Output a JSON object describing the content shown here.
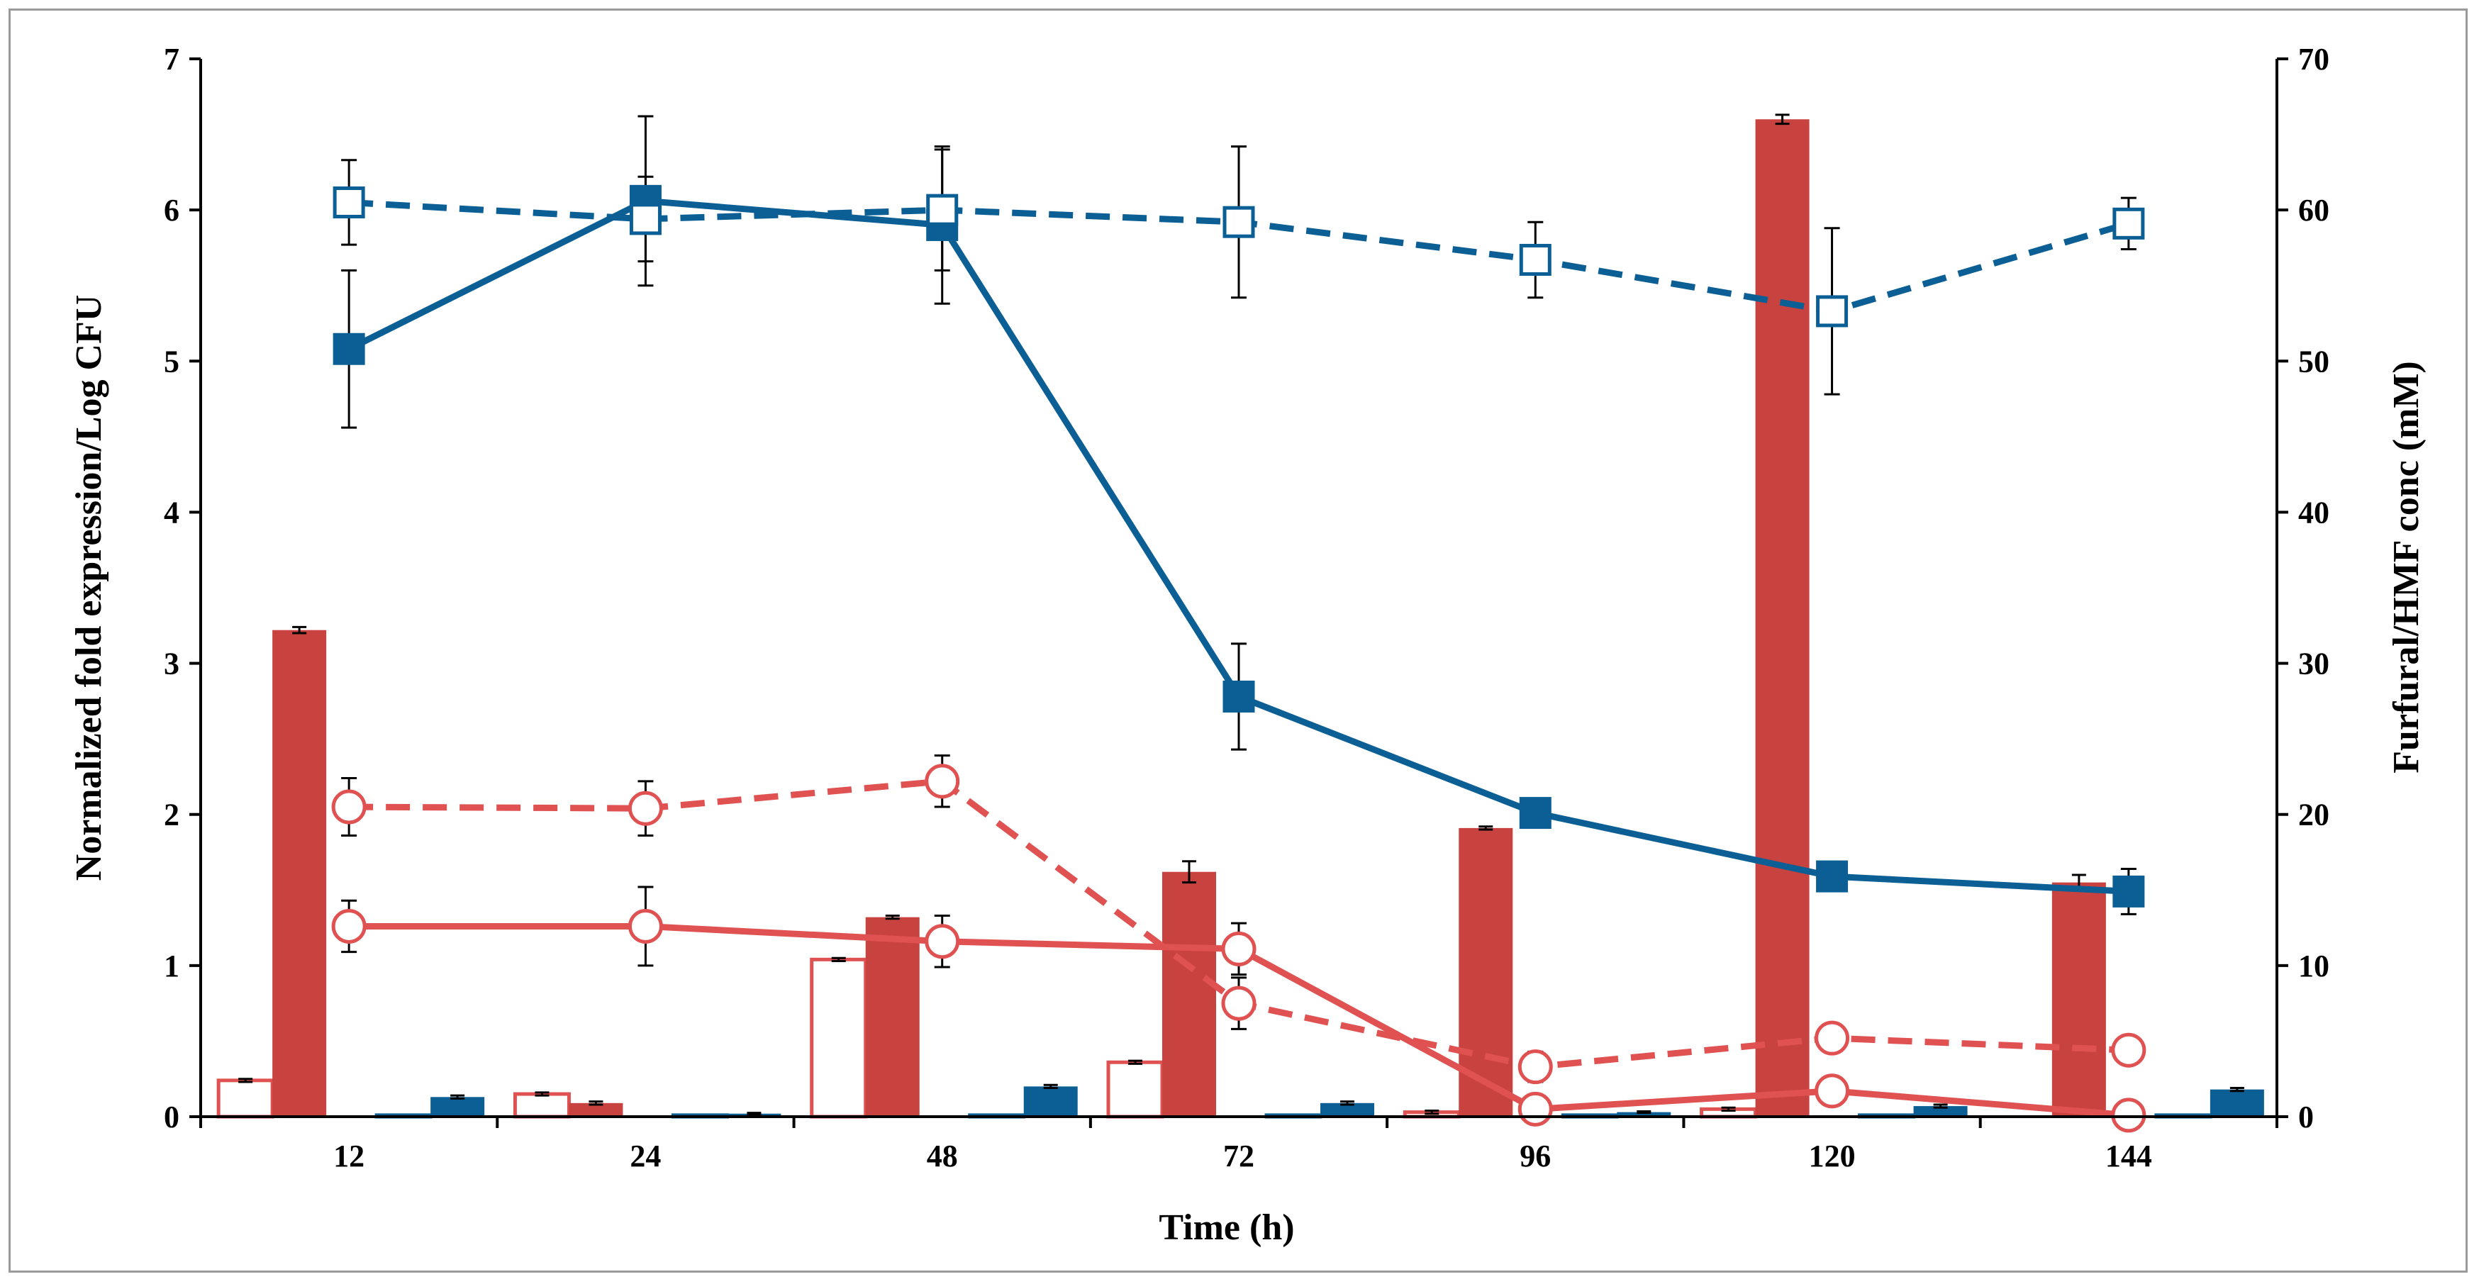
{
  "chart_data": {
    "type": "bar+line",
    "title": "",
    "xlabel": "Time (h)",
    "ylabel_left": "Normalized fold expression/Log CFU",
    "ylabel_right": "Furfural/HMF conc (mM)",
    "categories": [
      "12",
      "24",
      "48",
      "72",
      "96",
      "120",
      "144"
    ],
    "y_left": {
      "min": 0,
      "max": 7,
      "ticks": [
        "0",
        "1",
        "2",
        "3",
        "4",
        "5",
        "6",
        "7"
      ]
    },
    "y_right": {
      "min": 0,
      "max": 70,
      "ticks": [
        "0",
        "10",
        "20",
        "30",
        "40",
        "50",
        "60",
        "70"
      ]
    },
    "colors": {
      "red": "#c8423f",
      "blue": "#0b5f95",
      "axis": "#000000",
      "frame": "#9a9a9a"
    },
    "bar_series": [
      {
        "name": "bar-red-open",
        "style": "open",
        "color": "#e05252",
        "values": [
          0.24,
          0.15,
          1.04,
          0.36,
          0.03,
          0.05,
          0
        ],
        "errors": [
          0.01,
          0.01,
          0.01,
          0.01,
          0.01,
          0.01,
          0
        ]
      },
      {
        "name": "bar-red-filled",
        "style": "filled",
        "color": "#c8423f",
        "values": [
          3.22,
          0.09,
          1.32,
          1.62,
          1.91,
          6.6,
          1.55
        ],
        "errors": [
          0.02,
          0.01,
          0.01,
          0.07,
          0.01,
          0.03,
          0.05
        ]
      },
      {
        "name": "bar-blue-open",
        "style": "open",
        "color": "#0b5f95",
        "values": [
          0.01,
          0.01,
          0.01,
          0.01,
          0.01,
          0.01,
          0.01
        ],
        "errors": [
          0,
          0,
          0,
          0,
          0,
          0,
          0
        ]
      },
      {
        "name": "bar-blue-filled",
        "style": "filled",
        "color": "#0b5f95",
        "values": [
          0.13,
          0.02,
          0.2,
          0.09,
          0.03,
          0.07,
          0.18
        ],
        "errors": [
          0.01,
          0.005,
          0.01,
          0.01,
          0.005,
          0.01,
          0.01
        ]
      }
    ],
    "line_series": [
      {
        "name": "blue-solid-filled-square",
        "axis": "left",
        "color": "#0b5f95",
        "dash": "solid",
        "marker": "square",
        "filled": true,
        "values": [
          5.08,
          6.06,
          5.9,
          2.78,
          2.01,
          1.59,
          1.49
        ],
        "errors": [
          0.52,
          0.56,
          0.52,
          0.35,
          0,
          0,
          0.15
        ]
      },
      {
        "name": "blue-dashed-open-square",
        "axis": "left",
        "color": "#0b5f95",
        "dash": "dashed",
        "marker": "square",
        "filled": false,
        "values": [
          6.05,
          5.94,
          6.0,
          5.92,
          5.67,
          5.33,
          5.91
        ],
        "errors": [
          0.28,
          0.28,
          0.4,
          0.5,
          0.25,
          0.55,
          0.17
        ]
      },
      {
        "name": "red-solid-open-circle",
        "axis": "left",
        "color": "#e05252",
        "dash": "solid",
        "marker": "circle",
        "filled": false,
        "values": [
          1.26,
          1.26,
          1.16,
          1.11,
          0.05,
          0.17,
          0.01
        ],
        "errors": [
          0.17,
          0.26,
          0.17,
          0.17,
          0,
          0,
          0
        ]
      },
      {
        "name": "red-dashed-open-circle",
        "axis": "left",
        "color": "#e05252",
        "dash": "dashed",
        "marker": "circle",
        "filled": false,
        "values": [
          2.05,
          2.04,
          2.22,
          0.75,
          0.33,
          0.52,
          0.44
        ],
        "errors": [
          0.19,
          0.18,
          0.17,
          0.17,
          0.1,
          0.06,
          0
        ]
      }
    ]
  }
}
